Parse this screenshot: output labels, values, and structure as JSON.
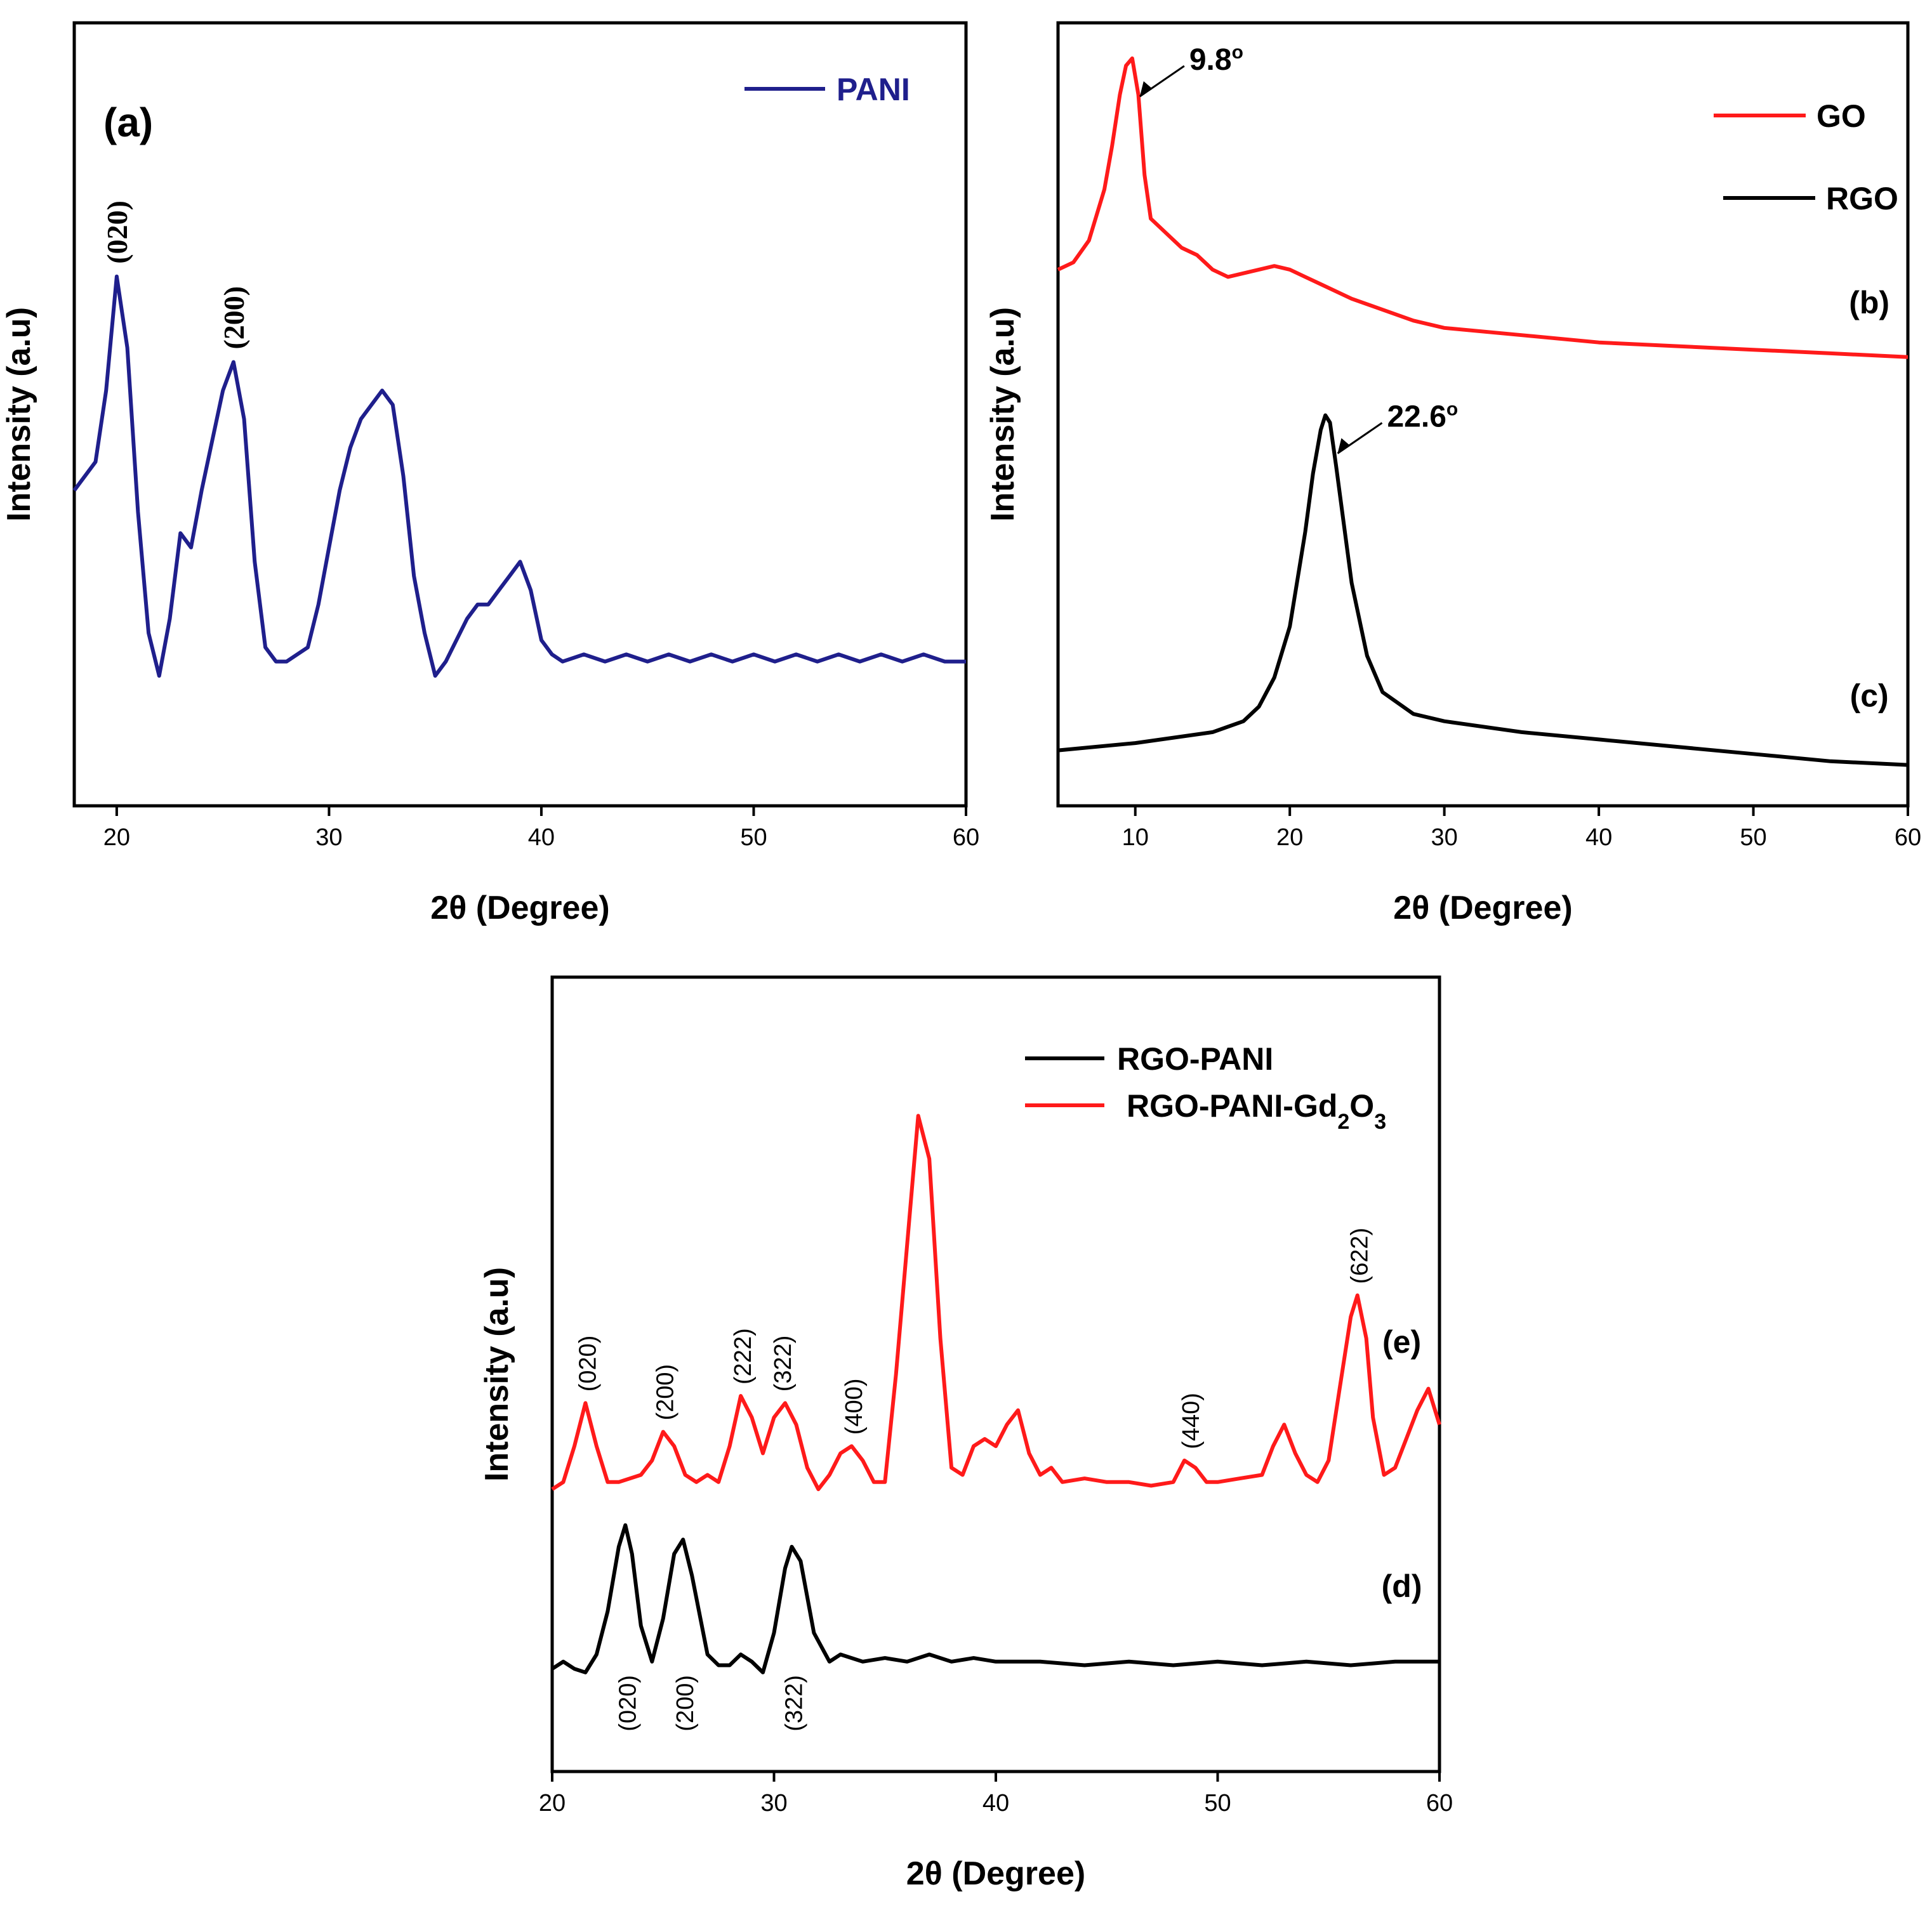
{
  "chart_data": [
    {
      "id": "a",
      "type": "line",
      "panel_label": "(a)",
      "xlabel": "2θ (Degree)",
      "ylabel": "Intensity (a.u)",
      "xlim": [
        18,
        60
      ],
      "ylim": [
        0,
        100
      ],
      "xticks": [
        20,
        30,
        40,
        50,
        60
      ],
      "legend": {
        "position": "top-right",
        "entries": [
          {
            "name": "PANI",
            "color": "#1f1f8c"
          }
        ]
      },
      "series": [
        {
          "name": "PANI",
          "color": "#1f1f8c",
          "x": [
            18,
            18.5,
            19,
            19.5,
            20,
            20.5,
            21,
            21.5,
            22,
            22.5,
            23,
            23.5,
            24,
            24.5,
            25,
            25.5,
            26,
            26.5,
            27,
            27.5,
            28,
            28.5,
            29,
            29.5,
            30,
            30.5,
            31,
            31.5,
            32,
            32.5,
            33,
            33.5,
            34,
            34.5,
            35,
            35.5,
            36,
            36.5,
            37,
            37.5,
            38,
            38.5,
            39,
            39.5,
            40,
            40.5,
            41,
            42,
            43,
            44,
            45,
            46,
            47,
            48,
            49,
            50,
            51,
            52,
            53,
            54,
            55,
            56,
            57,
            58,
            59,
            60
          ],
          "y": [
            38,
            40,
            42,
            52,
            68,
            58,
            35,
            18,
            12,
            20,
            32,
            30,
            38,
            45,
            52,
            56,
            48,
            28,
            16,
            14,
            14,
            15,
            16,
            22,
            30,
            38,
            44,
            48,
            50,
            52,
            50,
            40,
            26,
            18,
            12,
            14,
            17,
            20,
            22,
            22,
            24,
            26,
            28,
            24,
            17,
            15,
            14,
            15,
            14,
            15,
            14,
            15,
            14,
            15,
            14,
            15,
            14,
            15,
            14,
            15,
            14,
            15,
            14,
            15,
            14,
            14
          ]
        }
      ],
      "annotations": [
        {
          "label": "(020)",
          "x": 20,
          "y": 68
        },
        {
          "label": "(200)",
          "x": 25.5,
          "y": 56
        }
      ]
    },
    {
      "id": "bc",
      "type": "line",
      "xlabel": "2θ (Degree)",
      "ylabel": "Intensity (a.u)",
      "xlim": [
        5,
        60
      ],
      "ylim": [
        0,
        100
      ],
      "xticks": [
        10,
        20,
        30,
        40,
        50,
        60
      ],
      "legend": {
        "position": "top-right",
        "entries": [
          {
            "name": "GO",
            "color": "#ff1a1a"
          },
          {
            "name": "RGO",
            "color": "#000000"
          }
        ]
      },
      "series": [
        {
          "name": "GO",
          "color": "#ff1a1a",
          "x": [
            5,
            6,
            7,
            8,
            8.5,
            9,
            9.4,
            9.8,
            10.2,
            10.6,
            11,
            12,
            13,
            14,
            15,
            16,
            17,
            18,
            19,
            20,
            21,
            22,
            24,
            26,
            28,
            30,
            35,
            40,
            45,
            50,
            55,
            60
          ],
          "y": [
            71,
            72,
            75,
            82,
            88,
            95,
            99,
            100,
            95,
            84,
            78,
            76,
            74,
            73,
            71,
            70,
            70.5,
            71,
            71.5,
            71,
            70,
            69,
            67,
            65.5,
            64,
            63,
            62,
            61,
            60.5,
            60,
            59.5,
            59
          ]
        },
        {
          "name": "RGO",
          "color": "#000000",
          "x": [
            5,
            10,
            15,
            17,
            18,
            19,
            20,
            21,
            21.5,
            22,
            22.3,
            22.6,
            23,
            23.5,
            24,
            25,
            26,
            28,
            30,
            35,
            40,
            45,
            50,
            55,
            60
          ],
          "y": [
            5,
            6,
            7.5,
            9,
            11,
            15,
            22,
            35,
            43,
            49,
            51,
            50,
            44,
            36,
            28,
            18,
            13,
            10,
            9,
            7.5,
            6.5,
            5.5,
            4.5,
            3.5,
            3
          ]
        }
      ],
      "annotations": [
        {
          "label": "9.8",
          "x": 9.8,
          "y": 100
        },
        {
          "label": "22.6",
          "x": 22.6,
          "y": 51
        }
      ],
      "curve_labels": [
        {
          "label": "(b)",
          "x": 57.5,
          "y": 65
        },
        {
          "label": "(c)",
          "x": 57.5,
          "y": 11
        }
      ]
    },
    {
      "id": "de",
      "type": "line",
      "xlabel": "2θ (Degree)",
      "ylabel": "Intensity (a.u)",
      "xlim": [
        20,
        60
      ],
      "ylim": [
        0,
        100
      ],
      "xticks": [
        20,
        30,
        40,
        50,
        60
      ],
      "legend": {
        "position": "top-right",
        "entries": [
          {
            "name": "RGO-PANI",
            "color": "#000000"
          },
          {
            "name": "RGO-PANI-Gd2O3",
            "color": "#ff1a1a"
          }
        ]
      },
      "series": [
        {
          "name": "RGO-PANI",
          "color": "#000000",
          "x": [
            20,
            20.5,
            21,
            21.5,
            22,
            22.5,
            23,
            23.3,
            23.6,
            24,
            24.5,
            25,
            25.5,
            25.9,
            26.3,
            27,
            27.5,
            28,
            28.5,
            29,
            29.5,
            30,
            30.5,
            30.8,
            31.2,
            31.8,
            32.5,
            33,
            34,
            35,
            36,
            37,
            38,
            39,
            40,
            42,
            44,
            46,
            48,
            50,
            52,
            54,
            56,
            58,
            60
          ],
          "y": [
            9,
            10,
            9,
            8.5,
            11,
            17,
            26,
            29,
            25,
            15,
            10,
            16,
            25,
            27,
            22,
            11,
            9.5,
            9.5,
            11,
            10,
            8.5,
            14,
            23,
            26,
            24,
            14,
            10,
            11,
            10,
            10.5,
            10,
            11,
            10,
            10.5,
            10,
            10,
            9.5,
            10,
            9.5,
            10,
            9.5,
            10,
            9.5,
            10,
            10
          ]
        },
        {
          "name": "RGO-PANI-Gd2O3",
          "color": "#ff1a1a",
          "x": [
            20,
            20.5,
            21,
            21.5,
            22,
            22.5,
            23,
            24,
            24.5,
            25,
            25.5,
            26,
            26.5,
            27,
            27.5,
            28,
            28.5,
            29,
            29.5,
            30,
            30.5,
            31,
            31.5,
            32,
            32.5,
            33,
            33.5,
            34,
            34.5,
            35,
            35.5,
            36,
            36.5,
            37,
            37.5,
            38,
            38.5,
            39,
            39.5,
            40,
            40.5,
            41,
            41.5,
            42,
            42.5,
            43,
            44,
            45,
            46,
            47,
            48,
            48.5,
            49,
            49.5,
            50,
            51,
            52,
            52.5,
            53,
            53.5,
            54,
            54.5,
            55,
            55.5,
            56,
            56.3,
            56.7,
            57,
            57.5,
            58,
            58.5,
            59,
            59.5,
            60
          ],
          "y": [
            34,
            35,
            40,
            46,
            40,
            35,
            35,
            36,
            38,
            42,
            40,
            36,
            35,
            36,
            35,
            40,
            47,
            44,
            39,
            44,
            46,
            43,
            37,
            34,
            36,
            39,
            40,
            38,
            35,
            35,
            50,
            68,
            86,
            80,
            55,
            37,
            36,
            40,
            41,
            40,
            43,
            45,
            39,
            36,
            37,
            35,
            35.5,
            35,
            35,
            34.5,
            35,
            38,
            37,
            35,
            35,
            35.5,
            36,
            40,
            43,
            39,
            36,
            35,
            38,
            48,
            58,
            61,
            55,
            44,
            36,
            37,
            41,
            45,
            48,
            43
          ]
        }
      ],
      "annotations_e": [
        {
          "label": "(020)",
          "x": 21.5,
          "y": 46
        },
        {
          "label": "(200)",
          "x": 25,
          "y": 42
        },
        {
          "label": "(222)",
          "x": 28.5,
          "y": 47
        },
        {
          "label": "(322)",
          "x": 30.3,
          "y": 46
        },
        {
          "label": "(400)",
          "x": 33.5,
          "y": 40
        },
        {
          "label": "(440)",
          "x": 48.7,
          "y": 38
        },
        {
          "label": "(622)",
          "x": 56.3,
          "y": 61
        }
      ],
      "annotations_d": [
        {
          "label": "(020)",
          "x": 23.3
        },
        {
          "label": "(200)",
          "x": 25.9
        },
        {
          "label": "(322)",
          "x": 30.8
        }
      ],
      "curve_labels": [
        {
          "label": "(e)",
          "x": 58.3,
          "y": 53
        },
        {
          "label": "(d)",
          "x": 58.3,
          "y": 19
        }
      ]
    }
  ]
}
